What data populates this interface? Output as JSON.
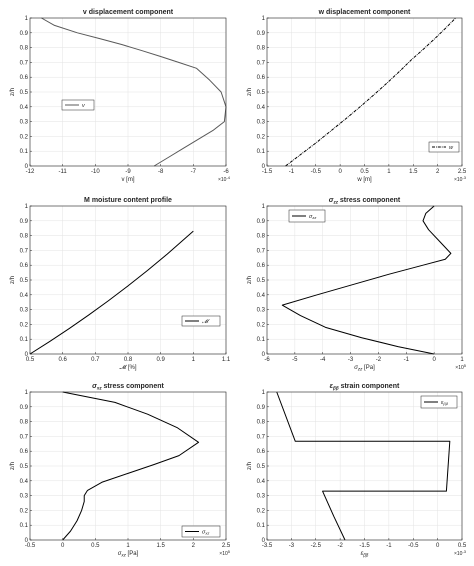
{
  "chart_data": [
    {
      "type": "line",
      "title": "v displacement component",
      "xlabel": "v [m]",
      "ylabel": "z/h",
      "xlim": [
        -0.0012,
        -0.0006
      ],
      "ylim": [
        0,
        1
      ],
      "x_exponent_label": "×10",
      "x_exponent_power": "-4",
      "x_tick_values": [
        -0.0012,
        -0.0011,
        -0.001,
        -0.0009,
        -0.0008,
        -0.0007,
        -0.0006
      ],
      "x_tick_labels": [
        "-12",
        "-11",
        "-10",
        "-9",
        "-8",
        "-7",
        "-6"
      ],
      "y_tick_values": [
        0,
        0.1,
        0.2,
        0.3,
        0.4,
        0.5,
        0.6,
        0.7,
        0.8,
        0.9,
        1
      ],
      "y_tick_labels": [
        "0",
        "0.1",
        "0.2",
        "0.3",
        "0.4",
        "0.5",
        "0.6",
        "0.7",
        "0.8",
        "0.9",
        "1"
      ],
      "grid": true,
      "legend": "middle-left",
      "series": [
        {
          "name": "v",
          "color": "#595959",
          "line_style": "solid",
          "x": [
            -0.00082,
            -0.000775,
            -0.00073,
            -0.000685,
            -0.00064,
            -0.000605,
            -0.0006,
            -0.000615,
            -0.00065,
            -0.00069,
            -0.000745,
            -0.0008,
            -0.000858,
            -0.000918,
            -0.000985,
            -0.001055,
            -0.001125,
            -0.001165
          ],
          "y": [
            0,
            0.06,
            0.12,
            0.18,
            0.24,
            0.3,
            0.4,
            0.5,
            0.58,
            0.66,
            0.7,
            0.74,
            0.78,
            0.82,
            0.86,
            0.9,
            0.95,
            1
          ]
        }
      ]
    },
    {
      "type": "line",
      "title": "w displacement component",
      "xlabel": "w [m]",
      "ylabel": "z/h",
      "xlim": [
        -0.0015,
        0.0025
      ],
      "ylim": [
        0,
        1
      ],
      "x_exponent_label": "×10",
      "x_exponent_power": "-3",
      "x_tick_values": [
        -0.0015,
        -0.001,
        -0.0005,
        0,
        0.0005,
        0.001,
        0.0015,
        0.002,
        0.0025
      ],
      "x_tick_labels": [
        "-1.5",
        "-1",
        "-0.5",
        "0",
        "0.5",
        "1",
        "1.5",
        "2",
        "2.5"
      ],
      "y_tick_values": [
        0,
        0.1,
        0.2,
        0.3,
        0.4,
        0.5,
        0.6,
        0.7,
        0.8,
        0.9,
        1
      ],
      "y_tick_labels": [
        "0",
        "0.1",
        "0.2",
        "0.3",
        "0.4",
        "0.5",
        "0.6",
        "0.7",
        "0.8",
        "0.9",
        "1"
      ],
      "grid": true,
      "legend": "bottom-right",
      "series": [
        {
          "name": "w",
          "color": "#000000",
          "line_style": "dash-dot",
          "x": [
            -0.00112,
            -0.0008,
            -0.00048,
            -0.00018,
            0.00012,
            0.00041,
            0.00069,
            0.00096,
            0.00122,
            0.00147,
            0.00171,
            0.00194,
            0.00216,
            0.00237
          ],
          "y": [
            0,
            0.08,
            0.16,
            0.24,
            0.32,
            0.4,
            0.48,
            0.56,
            0.64,
            0.72,
            0.79,
            0.86,
            0.93,
            1
          ]
        }
      ]
    },
    {
      "type": "line",
      "title": "M moisture content profile",
      "xlabel": "𝓜 [%]",
      "ylabel": "z/h",
      "xlim": [
        0.5,
        1.1
      ],
      "ylim": [
        0,
        1
      ],
      "x_tick_values": [
        0.5,
        0.6,
        0.7,
        0.8,
        0.9,
        1,
        1.1
      ],
      "x_tick_labels": [
        "0.5",
        "0.6",
        "0.7",
        "0.8",
        "0.9",
        "1",
        "1.1"
      ],
      "y_tick_values": [
        0,
        0.1,
        0.2,
        0.3,
        0.4,
        0.5,
        0.6,
        0.7,
        0.8,
        0.9,
        1
      ],
      "y_tick_labels": [
        "0",
        "0.1",
        "0.2",
        "0.3",
        "0.4",
        "0.5",
        "0.6",
        "0.7",
        "0.8",
        "0.9",
        "1"
      ],
      "grid": true,
      "legend": "middle-right",
      "series": [
        {
          "name": "𝓜",
          "color": "#000000",
          "line_style": "solid",
          "x": [
            0.5,
            0.56,
            0.62,
            0.68,
            0.74,
            0.8,
            0.86,
            0.92,
            1
          ],
          "y": [
            0,
            0.084,
            0.172,
            0.264,
            0.36,
            0.46,
            0.565,
            0.675,
            0.83
          ]
        }
      ]
    },
    {
      "type": "line",
      "title": "σ_zz stress component",
      "title_main": "σ",
      "title_sub": "zz",
      "title_rest": " stress component",
      "xlabel": "σ_zz [Pa]",
      "xlabel_main": "σ",
      "xlabel_sub": "zz",
      "xlabel_rest": " [Pa]",
      "ylabel": "z/h",
      "xlim": [
        -600000,
        100000
      ],
      "ylim": [
        0,
        1
      ],
      "x_exponent_label": "×10",
      "x_exponent_power": "5",
      "x_tick_values": [
        -600000,
        -500000,
        -400000,
        -300000,
        -200000,
        -100000,
        0,
        100000
      ],
      "x_tick_labels": [
        "-6",
        "-5",
        "-4",
        "-3",
        "-2",
        "-1",
        "0",
        "1"
      ],
      "y_tick_values": [
        0,
        0.1,
        0.2,
        0.3,
        0.4,
        0.5,
        0.6,
        0.7,
        0.8,
        0.9,
        1
      ],
      "y_tick_labels": [
        "0",
        "0.1",
        "0.2",
        "0.3",
        "0.4",
        "0.5",
        "0.6",
        "0.7",
        "0.8",
        "0.9",
        "1"
      ],
      "grid": true,
      "legend": "top-left",
      "series": [
        {
          "name": "σ_zz",
          "legend_main": "σ",
          "legend_sub": "zz",
          "color": "#000000",
          "line_style": "solid",
          "x": [
            0,
            -130000,
            -260000,
            -390000,
            -480000,
            -545000,
            -420000,
            -290000,
            -160000,
            -40000,
            40000,
            60000,
            20000,
            -20000,
            -40000,
            -30000,
            0
          ],
          "y": [
            0,
            0.05,
            0.11,
            0.18,
            0.26,
            0.33,
            0.4,
            0.47,
            0.54,
            0.6,
            0.64,
            0.68,
            0.76,
            0.84,
            0.9,
            0.95,
            1
          ]
        }
      ]
    },
    {
      "type": "line",
      "title": "σ_xz stress component",
      "title_main": "σ",
      "title_sub": "xz",
      "title_rest": " stress component",
      "xlabel": "σ_xz [Pa]",
      "xlabel_main": "σ",
      "xlabel_sub": "xz",
      "xlabel_rest": " [Pa]",
      "ylabel": "z/h",
      "xlim": [
        -50000,
        250000
      ],
      "ylim": [
        0,
        1
      ],
      "x_exponent_label": "×10",
      "x_exponent_power": "5",
      "x_tick_values": [
        -50000,
        0,
        50000,
        100000,
        150000,
        200000,
        250000
      ],
      "x_tick_labels": [
        "-0.5",
        "0",
        "0.5",
        "1",
        "1.5",
        "2",
        "2.5"
      ],
      "y_tick_values": [
        0,
        0.1,
        0.2,
        0.3,
        0.4,
        0.5,
        0.6,
        0.7,
        0.8,
        0.9,
        1
      ],
      "y_tick_labels": [
        "0",
        "0.1",
        "0.2",
        "0.3",
        "0.4",
        "0.5",
        "0.6",
        "0.7",
        "0.8",
        "0.9",
        "1"
      ],
      "grid": true,
      "legend": "bottom-right",
      "series": [
        {
          "name": "σ_xz",
          "legend_main": "σ",
          "legend_sub": "xz",
          "color": "#000000",
          "line_style": "solid",
          "x": [
            0,
            12000,
            22000,
            29000,
            33000,
            33000,
            38000,
            60000,
            100000,
            140000,
            178000,
            208000,
            175000,
            130000,
            80000,
            0
          ],
          "y": [
            0,
            0.06,
            0.13,
            0.2,
            0.26,
            0.3,
            0.335,
            0.39,
            0.45,
            0.51,
            0.57,
            0.66,
            0.76,
            0.85,
            0.93,
            1
          ]
        }
      ]
    },
    {
      "type": "line",
      "title": "ε_ββ strain component",
      "title_main": "ε",
      "title_sub": "ββ",
      "title_rest": " strain component",
      "xlabel": "ε_ββ",
      "xlabel_main": "ε",
      "xlabel_sub": "ββ",
      "xlabel_rest": "",
      "ylabel": "z/h",
      "xlim": [
        -0.0035,
        0.0005
      ],
      "ylim": [
        0,
        1
      ],
      "x_exponent_label": "×10",
      "x_exponent_power": "-3",
      "x_tick_values": [
        -0.0035,
        -0.003,
        -0.0025,
        -0.002,
        -0.0015,
        -0.001,
        -0.0005,
        0,
        0.0005
      ],
      "x_tick_labels": [
        "-3.5",
        "-3",
        "-2.5",
        "-2",
        "-1.5",
        "-1",
        "-0.5",
        "0",
        "0.5"
      ],
      "y_tick_values": [
        0,
        0.1,
        0.2,
        0.3,
        0.4,
        0.5,
        0.6,
        0.7,
        0.8,
        0.9,
        1
      ],
      "y_tick_labels": [
        "0",
        "0.1",
        "0.2",
        "0.3",
        "0.4",
        "0.5",
        "0.6",
        "0.7",
        "0.8",
        "0.9",
        "1"
      ],
      "grid": true,
      "legend": "top-right",
      "series": [
        {
          "name": "ε_ββ",
          "legend_main": "ε",
          "legend_sub": "ββ",
          "color": "#000000",
          "line_style": "solid",
          "x": [
            -0.0019,
            -0.00213,
            -0.00236,
            -0.00236,
            0.00018,
            0.00025,
            -0.00292,
            -0.0033
          ],
          "y": [
            0,
            0.16,
            0.33,
            0.33,
            0.33,
            0.667,
            0.667,
            1
          ]
        }
      ]
    }
  ]
}
